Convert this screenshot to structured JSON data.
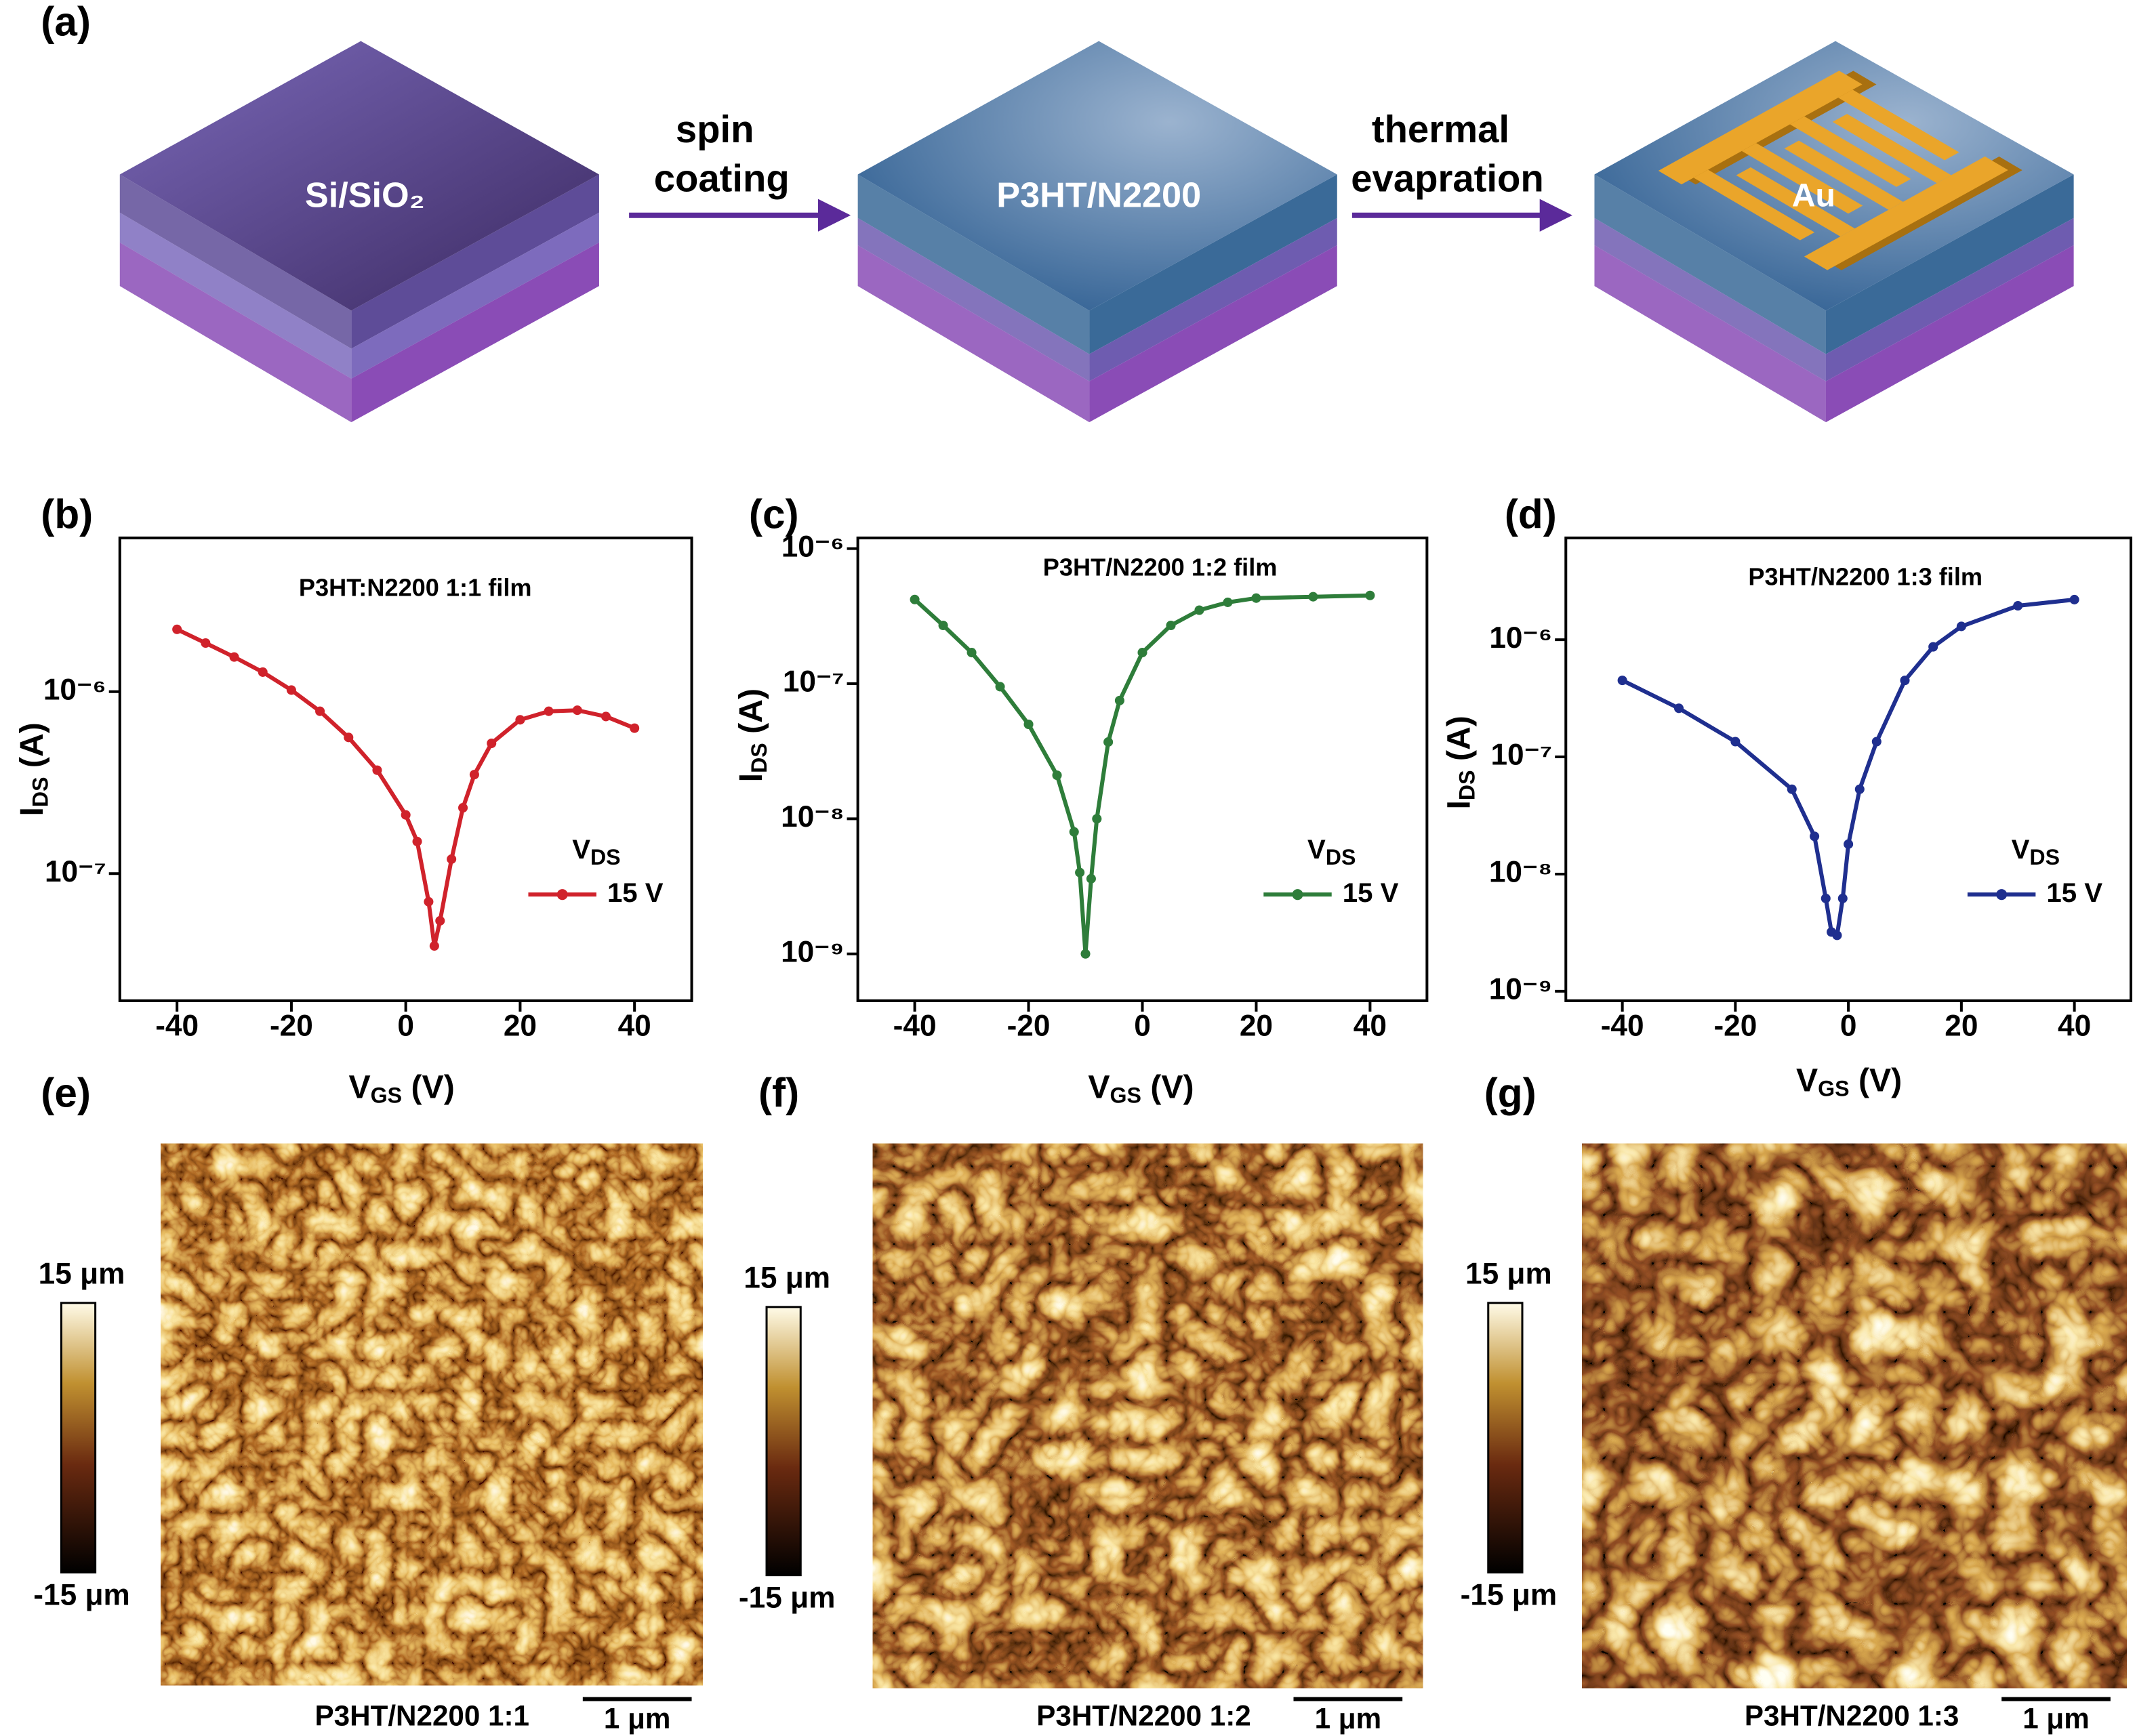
{
  "schematic": {
    "panel_label": "(a)",
    "layers": [
      "Si/SiO₂",
      "P3HT/N2200",
      "Au"
    ],
    "steps": [
      [
        "spin",
        "coating"
      ],
      [
        "thermal",
        "evapration"
      ]
    ]
  },
  "chart_data": [
    {
      "type": "line",
      "panel_label": "(b)",
      "title": "P3HT:N2200 1:1 film",
      "x_label": [
        "V",
        "GS",
        " (V)"
      ],
      "y_label": [
        "I",
        "DS",
        " (A)"
      ],
      "log_scale": true,
      "xlim": [
        -50,
        50
      ],
      "xticks": [
        -40,
        -20,
        0,
        20,
        40
      ],
      "ylim": [
        2e-08,
        7e-06
      ],
      "yticks": [
        {
          "value": 1e-07,
          "label": "10⁻⁷"
        },
        {
          "value": 1e-06,
          "label": "10⁻⁶"
        }
      ],
      "legend_title": [
        "V",
        "DS"
      ],
      "legend_position": "lower right",
      "x": [
        -40,
        -35,
        -30,
        -25,
        -20,
        -15,
        -10,
        -5,
        0,
        2,
        4,
        5,
        6,
        8,
        10,
        12,
        15,
        20,
        25,
        30,
        35,
        40
      ],
      "series": [
        {
          "name": "15 V",
          "color": "#d0222b",
          "values": [
            2.2e-06,
            1.85e-06,
            1.55e-06,
            1.28e-06,
            1.02e-06,
            7.8e-07,
            5.6e-07,
            3.7e-07,
            2.1e-07,
            1.5e-07,
            7e-08,
            4e-08,
            5.5e-08,
            1.2e-07,
            2.3e-07,
            3.5e-07,
            5.2e-07,
            7e-07,
            7.8e-07,
            7.9e-07,
            7.3e-07,
            6.3e-07
          ]
        }
      ]
    },
    {
      "type": "line",
      "panel_label": "(c)",
      "title": "P3HT/N2200 1:2 film",
      "x_label": [
        "V",
        "GS",
        " (V)"
      ],
      "y_label": [
        "I",
        "DS",
        " (A)"
      ],
      "log_scale": true,
      "xlim": [
        -50,
        50
      ],
      "xticks": [
        -40,
        -20,
        0,
        20,
        40
      ],
      "ylim": [
        4.5e-10,
        1.2e-06
      ],
      "yticks": [
        {
          "value": 1e-09,
          "label": "10⁻⁹"
        },
        {
          "value": 1e-08,
          "label": "10⁻⁸"
        },
        {
          "value": 1e-07,
          "label": "10⁻⁷"
        },
        {
          "value": 1e-06,
          "label": "10⁻⁶"
        }
      ],
      "legend_title": [
        "V",
        "DS"
      ],
      "legend_position": "lower right",
      "x": [
        -40,
        -35,
        -30,
        -25,
        -20,
        -15,
        -12,
        -11,
        -10,
        -9,
        -8,
        -6,
        -4,
        0,
        5,
        10,
        15,
        20,
        30,
        40
      ],
      "series": [
        {
          "name": "15 V",
          "color": "#2e7d3a",
          "values": [
            4.2e-07,
            2.7e-07,
            1.7e-07,
            9.5e-08,
            5e-08,
            2.1e-08,
            8e-09,
            4e-09,
            1e-09,
            3.6e-09,
            1e-08,
            3.7e-08,
            7.5e-08,
            1.7e-07,
            2.7e-07,
            3.5e-07,
            4e-07,
            4.3e-07,
            4.4e-07,
            4.5e-07
          ]
        }
      ]
    },
    {
      "type": "line",
      "panel_label": "(d)",
      "title": "P3HT/N2200 1:3 film",
      "x_label": [
        "V",
        "GS",
        " (V)"
      ],
      "y_label": [
        "I",
        "DS",
        " (A)"
      ],
      "log_scale": true,
      "xlim": [
        -50,
        50
      ],
      "xticks": [
        -40,
        -20,
        0,
        20,
        40
      ],
      "ylim": [
        8.3e-10,
        7.4e-06
      ],
      "yticks": [
        {
          "value": 1e-09,
          "label": "10⁻⁹"
        },
        {
          "value": 1e-08,
          "label": "10⁻⁸"
        },
        {
          "value": 1e-07,
          "label": "10⁻⁷"
        },
        {
          "value": 1e-06,
          "label": "10⁻⁶"
        }
      ],
      "legend_title": [
        "V",
        "DS"
      ],
      "legend_position": "lower right",
      "x": [
        -40,
        -30,
        -20,
        -10,
        -6,
        -4,
        -3,
        -2,
        -1,
        0,
        2,
        5,
        10,
        15,
        20,
        30,
        40
      ],
      "series": [
        {
          "name": "15 V",
          "color": "#1f2f8f",
          "values": [
            4.5e-07,
            2.6e-07,
            1.35e-07,
            5.3e-08,
            2.1e-08,
            6.2e-09,
            3.2e-09,
            3e-09,
            6.2e-09,
            1.8e-08,
            5.3e-08,
            1.35e-07,
            4.5e-07,
            8.7e-07,
            1.3e-06,
            1.95e-06,
            2.2e-06
          ]
        }
      ]
    }
  ],
  "afm_images": [
    {
      "panel_label": "(e)",
      "colorbar_max_label": "15 μm",
      "colorbar_min_label": "-15 μm",
      "caption": "P3HT/N2200 1:1",
      "scale_bar_label": "1 μm"
    },
    {
      "panel_label": "(f)",
      "colorbar_max_label": "15 μm",
      "colorbar_min_label": "-15 μm",
      "caption": "P3HT/N2200 1:2",
      "scale_bar_label": "1 μm"
    },
    {
      "panel_label": "(g)",
      "colorbar_max_label": "15 μm",
      "colorbar_min_label": "-15 μm",
      "caption": "P3HT/N2200 1:3",
      "scale_bar_label": "1 μm"
    }
  ]
}
